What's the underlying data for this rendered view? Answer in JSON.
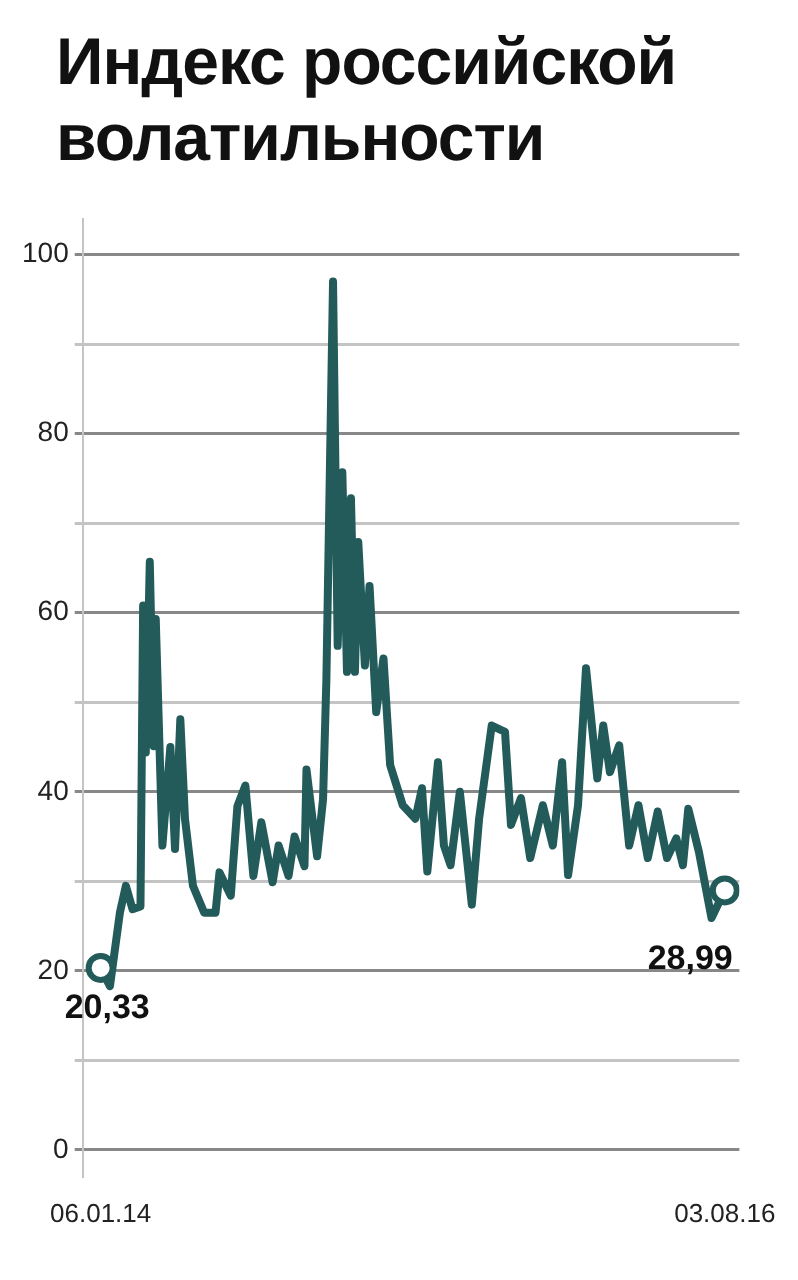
{
  "chart_data": {
    "type": "line",
    "title": "Индекс российской волатильности",
    "x": [
      "2014-01-06",
      "2014-01-20",
      "2014-02-04",
      "2014-02-13",
      "2014-02-23",
      "2014-03-07",
      "2014-03-11",
      "2014-03-15",
      "2014-03-21",
      "2014-03-27",
      "2014-03-30",
      "2014-04-09",
      "2014-04-21",
      "2014-04-28",
      "2014-05-06",
      "2014-05-13",
      "2014-05-25",
      "2014-06-11",
      "2014-06-28",
      "2014-07-04",
      "2014-07-21",
      "2014-07-31",
      "2014-08-12",
      "2014-08-24",
      "2014-09-05",
      "2014-09-22",
      "2014-10-01",
      "2014-10-16",
      "2014-10-25",
      "2014-11-09",
      "2014-11-12",
      "2014-11-28",
      "2014-12-07",
      "2014-12-12",
      "2014-12-22",
      "2014-12-29",
      "2015-01-05",
      "2015-01-12",
      "2015-01-18",
      "2015-01-24",
      "2015-01-29",
      "2015-02-08",
      "2015-02-15",
      "2015-02-25",
      "2015-03-08",
      "2015-03-18",
      "2015-04-06",
      "2015-04-25",
      "2015-05-05",
      "2015-05-13",
      "2015-05-29",
      "2015-06-07",
      "2015-06-17",
      "2015-07-01",
      "2015-07-19",
      "2015-07-30",
      "2015-08-18",
      "2015-09-07",
      "2015-09-16",
      "2015-10-01",
      "2015-10-15",
      "2015-11-03",
      "2015-11-18",
      "2015-12-02",
      "2015-12-11",
      "2015-12-26",
      "2016-01-07",
      "2016-01-24",
      "2016-02-02",
      "2016-02-12",
      "2016-02-26",
      "2016-03-12",
      "2016-03-26",
      "2016-04-09",
      "2016-04-24",
      "2016-05-08",
      "2016-05-22",
      "2016-06-01",
      "2016-06-09",
      "2016-06-25",
      "2016-07-14",
      "2016-08-03"
    ],
    "series": [
      {
        "color": "#235b5b",
        "values": [
          20.33,
          18.3,
          26.5,
          29.5,
          26.9,
          27.2,
          60.8,
          44.4,
          65.7,
          45.1,
          59.3,
          34,
          45,
          33.6,
          48.1,
          37,
          29.5,
          26.5,
          26.5,
          31,
          28.4,
          38.4,
          40.7,
          30.6,
          36.6,
          29.9,
          34,
          30.6,
          35,
          31.7,
          42.5,
          32.8,
          39.2,
          52.6,
          97,
          56.3,
          75.7,
          53.4,
          72.8,
          53.4,
          67.9,
          54.1,
          63,
          48.9,
          54.9,
          43,
          38.5,
          37,
          40.4,
          31.1,
          43.3,
          34,
          31.8,
          40,
          27.4,
          37,
          47.4,
          46.7,
          36.3,
          39.3,
          32.6,
          38.5,
          34,
          43.3,
          30.7,
          38.5,
          53.8,
          41.5,
          47.4,
          42.2,
          45.2,
          34,
          38.5,
          32.6,
          37.8,
          32.6,
          34.8,
          31.8,
          38.1,
          33.3,
          25.9,
          28.99
        ]
      }
    ],
    "xlim": [
      "2013-12-10",
      "2016-08-25"
    ],
    "xticks": [
      {
        "value": "2014-01-06",
        "label": "06.01.14"
      },
      {
        "value": "2016-08-03",
        "label": "03.08.16"
      }
    ],
    "ylim": [
      -3,
      104
    ],
    "yticks": [
      0,
      {
        "value": 10,
        "label": null
      },
      20,
      {
        "value": 30,
        "label": null
      },
      40,
      {
        "value": 50,
        "label": null
      },
      60,
      {
        "value": 70,
        "label": null
      },
      80,
      {
        "value": 90,
        "label": null
      },
      100
    ],
    "grid": "y",
    "marker": "none",
    "line_style": "solid",
    "legend": false,
    "annotations": [
      {
        "text": "20,33",
        "x": "2014-01-06",
        "y": 20.33
      },
      {
        "text": "28,99",
        "x": "2016-08-03",
        "y": 28.99
      }
    ]
  }
}
